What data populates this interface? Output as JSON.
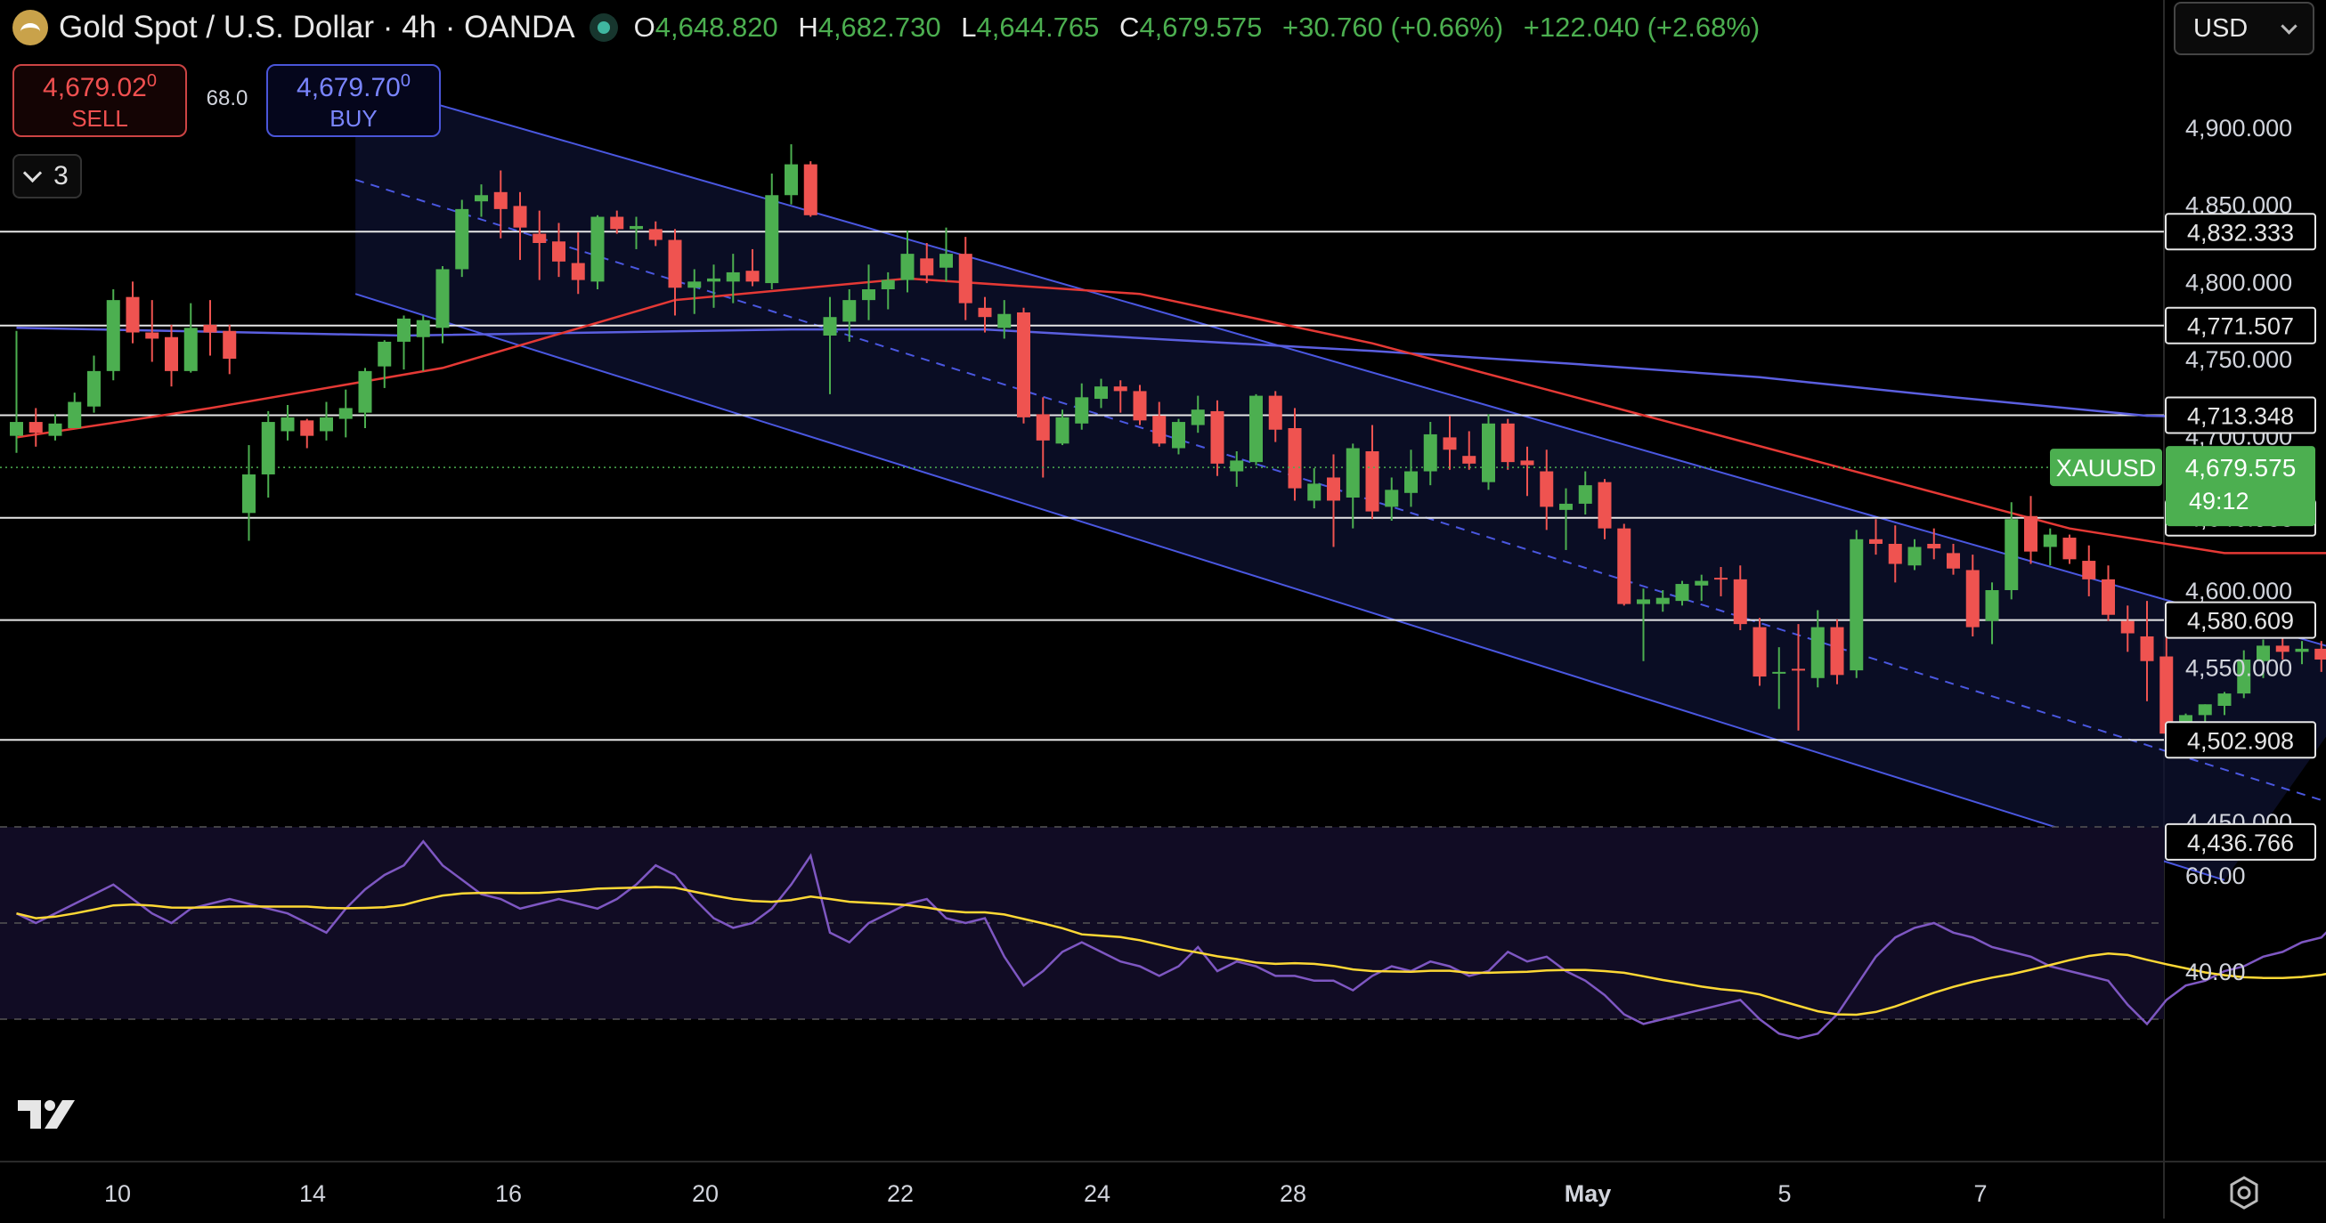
{
  "header": {
    "symbol": "Gold Spot / U.S. Dollar · 4h · OANDA",
    "ohlc": [
      {
        "label": "O",
        "value": "4,648.820"
      },
      {
        "label": "H",
        "value": "4,682.730"
      },
      {
        "label": "L",
        "value": "4,644.765"
      },
      {
        "label": "C",
        "value": "4,679.575"
      }
    ],
    "change": "+30.760 (+0.66%)",
    "change2": "+122.040 (+2.68%)",
    "currency": "USD"
  },
  "trade": {
    "sell_price": "4,679.02",
    "sell_small": "0",
    "sell_label": "SELL",
    "spread": "68.0",
    "buy_price": "4,679.70",
    "buy_small": "0",
    "buy_label": "BUY",
    "indicators_count": "3"
  },
  "colors": {
    "up": "#4caf50",
    "down": "#ef5350",
    "channel": "#4a57e0",
    "sma_red": "#e53935",
    "sma_blue": "#5b5fe0",
    "rsi": "#7e57c2",
    "rsi_ma": "#fdd835",
    "last_price_bg": "#4caf50"
  },
  "chart_data": {
    "type": "candlestick",
    "interval": "4h",
    "ylim": [
      4400,
      4950
    ],
    "price_ticks": [
      "4,900.000",
      "4,850.000",
      "4,800.000",
      "4,750.000",
      "4,700.000",
      "4,650.000",
      "4,600.000",
      "4,550.000",
      "4,500.000",
      "4,450.000"
    ],
    "date_ticks": [
      "10",
      "14",
      "16",
      "20",
      "22",
      "24",
      "28",
      "May",
      "5",
      "7"
    ],
    "horizontal_levels": [
      "4,832.333",
      "4,771.507",
      "4,713.348",
      "4,646.905",
      "4,580.609",
      "4,502.908",
      "4,436.766"
    ],
    "last_price": {
      "symbol": "XAUUSD",
      "price": "4,679.575",
      "countdown": "49:12"
    },
    "candles": [
      [
        4700,
        4768,
        4689,
        4709
      ],
      [
        4709,
        4718,
        4693,
        4702
      ],
      [
        4700,
        4714,
        4697,
        4708
      ],
      [
        4705,
        4728,
        4705,
        4722
      ],
      [
        4719,
        4752,
        4715,
        4742
      ],
      [
        4742,
        4795,
        4736,
        4788
      ],
      [
        4790,
        4800,
        4760,
        4767
      ],
      [
        4767,
        4788,
        4748,
        4763
      ],
      [
        4764,
        4772,
        4732,
        4742
      ],
      [
        4742,
        4786,
        4741,
        4770
      ],
      [
        4772,
        4788,
        4752,
        4767
      ],
      [
        4768,
        4772,
        4740,
        4750
      ],
      [
        4650,
        4694,
        4632,
        4675
      ],
      [
        4675,
        4716,
        4660,
        4709
      ],
      [
        4703,
        4720,
        4697,
        4712
      ],
      [
        4710,
        4711,
        4692,
        4700
      ],
      [
        4703,
        4722,
        4697,
        4712
      ],
      [
        4711,
        4730,
        4699,
        4718
      ],
      [
        4715,
        4744,
        4705,
        4742
      ],
      [
        4745,
        4762,
        4731,
        4761
      ],
      [
        4761,
        4778,
        4743,
        4776
      ],
      [
        4764,
        4778,
        4742,
        4775
      ],
      [
        4770,
        4810,
        4760,
        4808
      ],
      [
        4808,
        4853,
        4803,
        4847
      ],
      [
        4852,
        4863,
        4842,
        4856
      ],
      [
        4858,
        4872,
        4828,
        4847
      ],
      [
        4849,
        4858,
        4814,
        4835
      ],
      [
        4831,
        4846,
        4801,
        4825
      ],
      [
        4826,
        4838,
        4803,
        4813
      ],
      [
        4812,
        4832,
        4792,
        4801
      ],
      [
        4800,
        4843,
        4795,
        4842
      ],
      [
        4842,
        4846,
        4831,
        4834
      ],
      [
        4834,
        4842,
        4821,
        4836
      ],
      [
        4834,
        4839,
        4823,
        4827
      ],
      [
        4827,
        4834,
        4778,
        4796
      ],
      [
        4796,
        4808,
        4779,
        4800
      ],
      [
        4800,
        4811,
        4783,
        4802
      ],
      [
        4800,
        4818,
        4786,
        4806
      ],
      [
        4807,
        4821,
        4797,
        4800
      ],
      [
        4799,
        4870,
        4795,
        4856
      ],
      [
        4856,
        4889,
        4850,
        4876
      ],
      [
        4876,
        4878,
        4842,
        4843
      ],
      [
        4765,
        4790,
        4727,
        4777
      ],
      [
        4774,
        4795,
        4761,
        4788
      ],
      [
        4788,
        4811,
        4775,
        4795
      ],
      [
        4795,
        4806,
        4782,
        4801
      ],
      [
        4801,
        4833,
        4793,
        4818
      ],
      [
        4815,
        4825,
        4799,
        4804
      ],
      [
        4809,
        4835,
        4800,
        4818
      ],
      [
        4818,
        4829,
        4775,
        4786
      ],
      [
        4783,
        4790,
        4767,
        4777
      ],
      [
        4770,
        4788,
        4763,
        4779
      ],
      [
        4780,
        4783,
        4708,
        4712
      ],
      [
        4714,
        4725,
        4673,
        4697
      ],
      [
        4695,
        4717,
        4694,
        4712
      ],
      [
        4708,
        4734,
        4704,
        4725
      ],
      [
        4724,
        4737,
        4718,
        4732
      ],
      [
        4732,
        4736,
        4715,
        4729
      ],
      [
        4729,
        4733,
        4707,
        4710
      ],
      [
        4713,
        4722,
        4693,
        4695
      ],
      [
        4692,
        4711,
        4688,
        4709
      ],
      [
        4707,
        4726,
        4702,
        4717
      ],
      [
        4716,
        4723,
        4674,
        4682
      ],
      [
        4677,
        4690,
        4667,
        4684
      ],
      [
        4683,
        4727,
        4681,
        4726
      ],
      [
        4726,
        4729,
        4696,
        4704
      ],
      [
        4705,
        4718,
        4658,
        4666
      ],
      [
        4658,
        4679,
        4653,
        4669
      ],
      [
        4673,
        4688,
        4628,
        4658
      ],
      [
        4660,
        4695,
        4640,
        4692
      ],
      [
        4690,
        4707,
        4646,
        4651
      ],
      [
        4654,
        4673,
        4645,
        4665
      ],
      [
        4663,
        4691,
        4654,
        4677
      ],
      [
        4677,
        4709,
        4668,
        4701
      ],
      [
        4699,
        4713,
        4678,
        4691
      ],
      [
        4687,
        4703,
        4678,
        4682
      ],
      [
        4670,
        4714,
        4665,
        4708
      ],
      [
        4708,
        4711,
        4678,
        4683
      ],
      [
        4684,
        4693,
        4661,
        4681
      ],
      [
        4677,
        4691,
        4639,
        4654
      ],
      [
        4652,
        4666,
        4626,
        4656
      ],
      [
        4656,
        4677,
        4649,
        4668
      ],
      [
        4670,
        4672,
        4633,
        4640
      ],
      [
        4640,
        4643,
        4590,
        4591
      ],
      [
        4591,
        4601,
        4554,
        4594
      ],
      [
        4591,
        4600,
        4586,
        4595
      ],
      [
        4593,
        4606,
        4590,
        4604
      ],
      [
        4603,
        4610,
        4593,
        4606
      ],
      [
        4608,
        4615,
        4596,
        4607
      ],
      [
        4607,
        4616,
        4574,
        4578
      ],
      [
        4576,
        4582,
        4538,
        4544
      ],
      [
        4546,
        4563,
        4523,
        4547
      ],
      [
        4549,
        4578,
        4509,
        4548
      ],
      [
        4543,
        4587,
        4537,
        4576
      ],
      [
        4576,
        4581,
        4539,
        4545
      ],
      [
        4548,
        4639,
        4543,
        4633
      ],
      [
        4633,
        4646,
        4623,
        4630
      ],
      [
        4630,
        4642,
        4605,
        4617
      ],
      [
        4616,
        4633,
        4613,
        4628
      ],
      [
        4630,
        4640,
        4620,
        4627
      ],
      [
        4624,
        4630,
        4610,
        4614
      ],
      [
        4613,
        4623,
        4570,
        4576
      ],
      [
        4580,
        4605,
        4565,
        4600
      ],
      [
        4600,
        4657,
        4594,
        4646
      ],
      [
        4648,
        4661,
        4617,
        4625
      ],
      [
        4628,
        4640,
        4616,
        4636
      ],
      [
        4634,
        4636,
        4617,
        4620
      ],
      [
        4619,
        4629,
        4596,
        4607
      ],
      [
        4607,
        4616,
        4580,
        4584
      ],
      [
        4580,
        4590,
        4560,
        4572
      ],
      [
        4570,
        4593,
        4528,
        4554
      ],
      [
        4557,
        4586,
        4502,
        4507
      ],
      [
        4506,
        4520,
        4503,
        4519
      ],
      [
        4519,
        4526,
        4514,
        4526
      ],
      [
        4525,
        4534,
        4519,
        4533
      ],
      [
        4533,
        4561,
        4530,
        4555
      ],
      [
        4554,
        4568,
        4543,
        4564
      ],
      [
        4564,
        4575,
        4555,
        4560
      ],
      [
        4560,
        4567,
        4552,
        4562
      ],
      [
        4562,
        4567,
        4547,
        4555
      ],
      [
        4553,
        4623,
        4544,
        4620
      ],
      [
        4621,
        4655,
        4614,
        4650
      ],
      [
        4650,
        4687,
        4648,
        4680
      ]
    ],
    "sma_red": [
      [
        0,
        4699
      ],
      [
        10,
        4718
      ],
      [
        22,
        4744
      ],
      [
        34,
        4788
      ],
      [
        46,
        4802
      ],
      [
        58,
        4792
      ],
      [
        70,
        4760
      ],
      [
        82,
        4720
      ],
      [
        94,
        4680
      ],
      [
        106,
        4640
      ],
      [
        114,
        4624
      ],
      [
        122,
        4624
      ]
    ],
    "sma_blue": [
      [
        0,
        4770
      ],
      [
        20,
        4765
      ],
      [
        40,
        4769
      ],
      [
        50,
        4769
      ],
      [
        60,
        4762
      ],
      [
        70,
        4755
      ],
      [
        80,
        4747
      ],
      [
        90,
        4738
      ],
      [
        100,
        4725
      ],
      [
        110,
        4713
      ],
      [
        114,
        4712
      ]
    ],
    "channel": {
      "upper": [
        [
          17.5,
          4930
        ],
        [
          122,
          4554
        ]
      ],
      "mid": [
        [
          17.5,
          4866
        ],
        [
          122,
          4452
        ]
      ],
      "lower": [
        [
          17.5,
          4792
        ],
        [
          114,
          4412
        ]
      ]
    },
    "rsi": {
      "ticks": [
        "60.00",
        "40.00"
      ],
      "ylim": [
        20,
        80
      ],
      "bands": [
        70,
        50,
        30
      ],
      "values": [
        52,
        50,
        52,
        54,
        56,
        58,
        55,
        52,
        50,
        53,
        54,
        55,
        54,
        53,
        52,
        50,
        48,
        53,
        57,
        60,
        62,
        67,
        62,
        59,
        56,
        55,
        53,
        54,
        55,
        54,
        53,
        55,
        58,
        62,
        60,
        55,
        51,
        49,
        50,
        53,
        58,
        64,
        48,
        46,
        50,
        52,
        54,
        55,
        51,
        50,
        51,
        43,
        37,
        40,
        44,
        46,
        44,
        42,
        41,
        39,
        41,
        45,
        40,
        42,
        41,
        39,
        39,
        38,
        38,
        36,
        39,
        41,
        40,
        42,
        41,
        39,
        40,
        44,
        42,
        43,
        40,
        38,
        35,
        31,
        29,
        30,
        31,
        32,
        33,
        34,
        30,
        27,
        26,
        27,
        31,
        37,
        43,
        47,
        49,
        50,
        48,
        47,
        45,
        44,
        43,
        41,
        40,
        39,
        38,
        33,
        29,
        34,
        37,
        38,
        40,
        41,
        43,
        44,
        46,
        47,
        51,
        59,
        66
      ]
    }
  }
}
